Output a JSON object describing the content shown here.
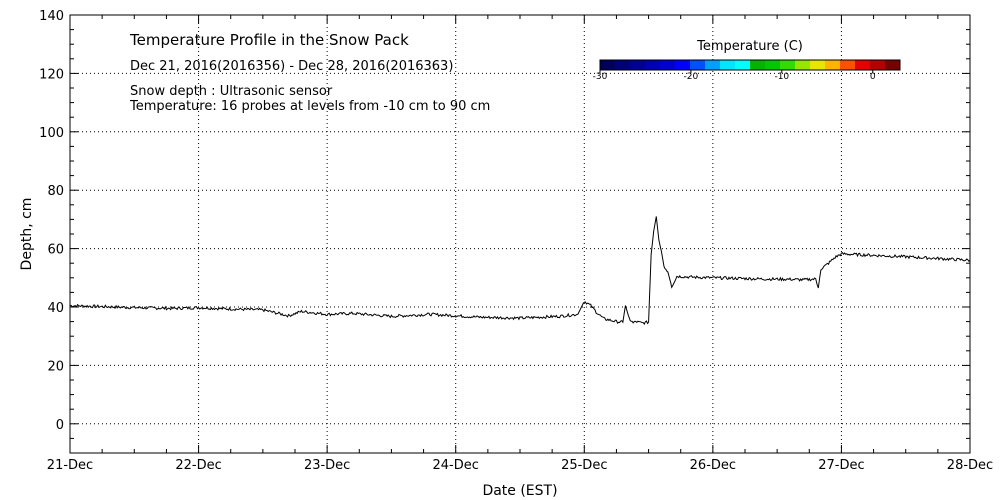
{
  "chart_data": {
    "type": "line",
    "title": "Temperature Profile in the Snow Pack",
    "subtitle": "Dec 21, 2016(2016356) - Dec 28, 2016(2016363)",
    "annotations": [
      "Snow depth : Ultrasonic sensor",
      "Temperature: 16 probes at levels from -10 cm to 90 cm"
    ],
    "xlabel": "Date (EST)",
    "ylabel": "Depth, cm",
    "x_tick_labels": [
      "21-Dec",
      "22-Dec",
      "23-Dec",
      "24-Dec",
      "25-Dec",
      "26-Dec",
      "27-Dec",
      "28-Dec"
    ],
    "x_range_days": [
      0,
      7
    ],
    "ylim": [
      -10,
      140
    ],
    "y_ticks": [
      0,
      20,
      40,
      60,
      80,
      100,
      120,
      140
    ],
    "grid": true,
    "grid_style": "dotted",
    "colorbar": {
      "title": "Temperature (C)",
      "range": [
        -30,
        3
      ],
      "tick_values": [
        -30,
        -20,
        -10,
        0
      ],
      "tick_labels": [
        "-30",
        "-20",
        "-10",
        "0"
      ],
      "colors": [
        "#00005a",
        "#000078",
        "#000096",
        "#0000b4",
        "#0000d2",
        "#0000ff",
        "#0050ff",
        "#00a0ff",
        "#00e6ff",
        "#00ffff",
        "#00b400",
        "#00c800",
        "#32dc00",
        "#96e600",
        "#e6e600",
        "#ffb400",
        "#ff5000",
        "#e60000",
        "#b40000",
        "#780000"
      ]
    },
    "series": [
      {
        "color": "#000000",
        "x": [
          0,
          0.2,
          0.5,
          0.8,
          1.0,
          1.2,
          1.5,
          1.7,
          1.8,
          2.0,
          2.2,
          2.5,
          2.8,
          3.0,
          3.2,
          3.5,
          3.8,
          3.95,
          4.0,
          4.05,
          4.1,
          4.15,
          4.2,
          4.25,
          4.3,
          4.32,
          4.35,
          4.38,
          4.4,
          4.45,
          4.5,
          4.52,
          4.54,
          4.56,
          4.58,
          4.6,
          4.62,
          4.65,
          4.68,
          4.72,
          4.75,
          4.8,
          5.0,
          5.2,
          5.4,
          5.6,
          5.7,
          5.8,
          5.82,
          5.84,
          5.87,
          5.9,
          5.95,
          6.0,
          6.1,
          6.2,
          6.5,
          6.8,
          7.0
        ],
        "y": [
          40.5,
          40.2,
          39.8,
          39.5,
          39.8,
          39.4,
          39.0,
          37.0,
          38.5,
          37.5,
          37.8,
          36.8,
          37.5,
          37.0,
          36.5,
          36.2,
          36.8,
          37.5,
          42.0,
          40.5,
          38.0,
          36.0,
          35.5,
          35.0,
          34.8,
          40.5,
          36.0,
          34.5,
          35.0,
          34.5,
          34.8,
          58.0,
          66.0,
          71.0,
          63.0,
          59.0,
          54.0,
          52.0,
          47.0,
          50.5,
          50.5,
          50.3,
          50.0,
          49.8,
          49.6,
          49.5,
          49.3,
          49.6,
          46.5,
          53.0,
          54.0,
          55.0,
          57.0,
          58.2,
          58.0,
          57.8,
          57.2,
          56.5,
          56.0
        ]
      }
    ]
  }
}
